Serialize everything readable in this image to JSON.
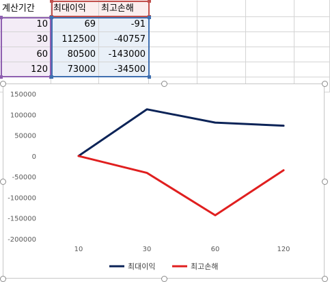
{
  "sheet": {
    "headers": [
      "계산기간",
      "최대이익",
      "최고손해"
    ],
    "rows": [
      [
        "10",
        "69",
        "-91"
      ],
      [
        "30",
        "112500",
        "-40757"
      ],
      [
        "60",
        "80500",
        "-143000"
      ],
      [
        "120",
        "73000",
        "-34500"
      ]
    ]
  },
  "colors": {
    "series1": "#0b2357",
    "series2": "#e01f1f",
    "sel_purple": "#8e5fb0",
    "sel_red": "#c0504d",
    "sel_blue": "#3f6fb0"
  },
  "chart_data": {
    "type": "line",
    "categories": [
      "10",
      "30",
      "60",
      "120"
    ],
    "series": [
      {
        "name": "최대이익",
        "values": [
          69,
          112500,
          80500,
          73000
        ],
        "color": "#0b2357"
      },
      {
        "name": "최고손해",
        "values": [
          -91,
          -40757,
          -143000,
          -34500
        ],
        "color": "#e01f1f"
      }
    ],
    "yticks": [
      "150000",
      "100000",
      "50000",
      "0",
      "-50000",
      "-100000",
      "-150000",
      "-200000"
    ],
    "ylim": [
      -200000,
      150000
    ],
    "title": "",
    "xlabel": "",
    "ylabel": "",
    "grid": false,
    "legend": "bottom"
  }
}
